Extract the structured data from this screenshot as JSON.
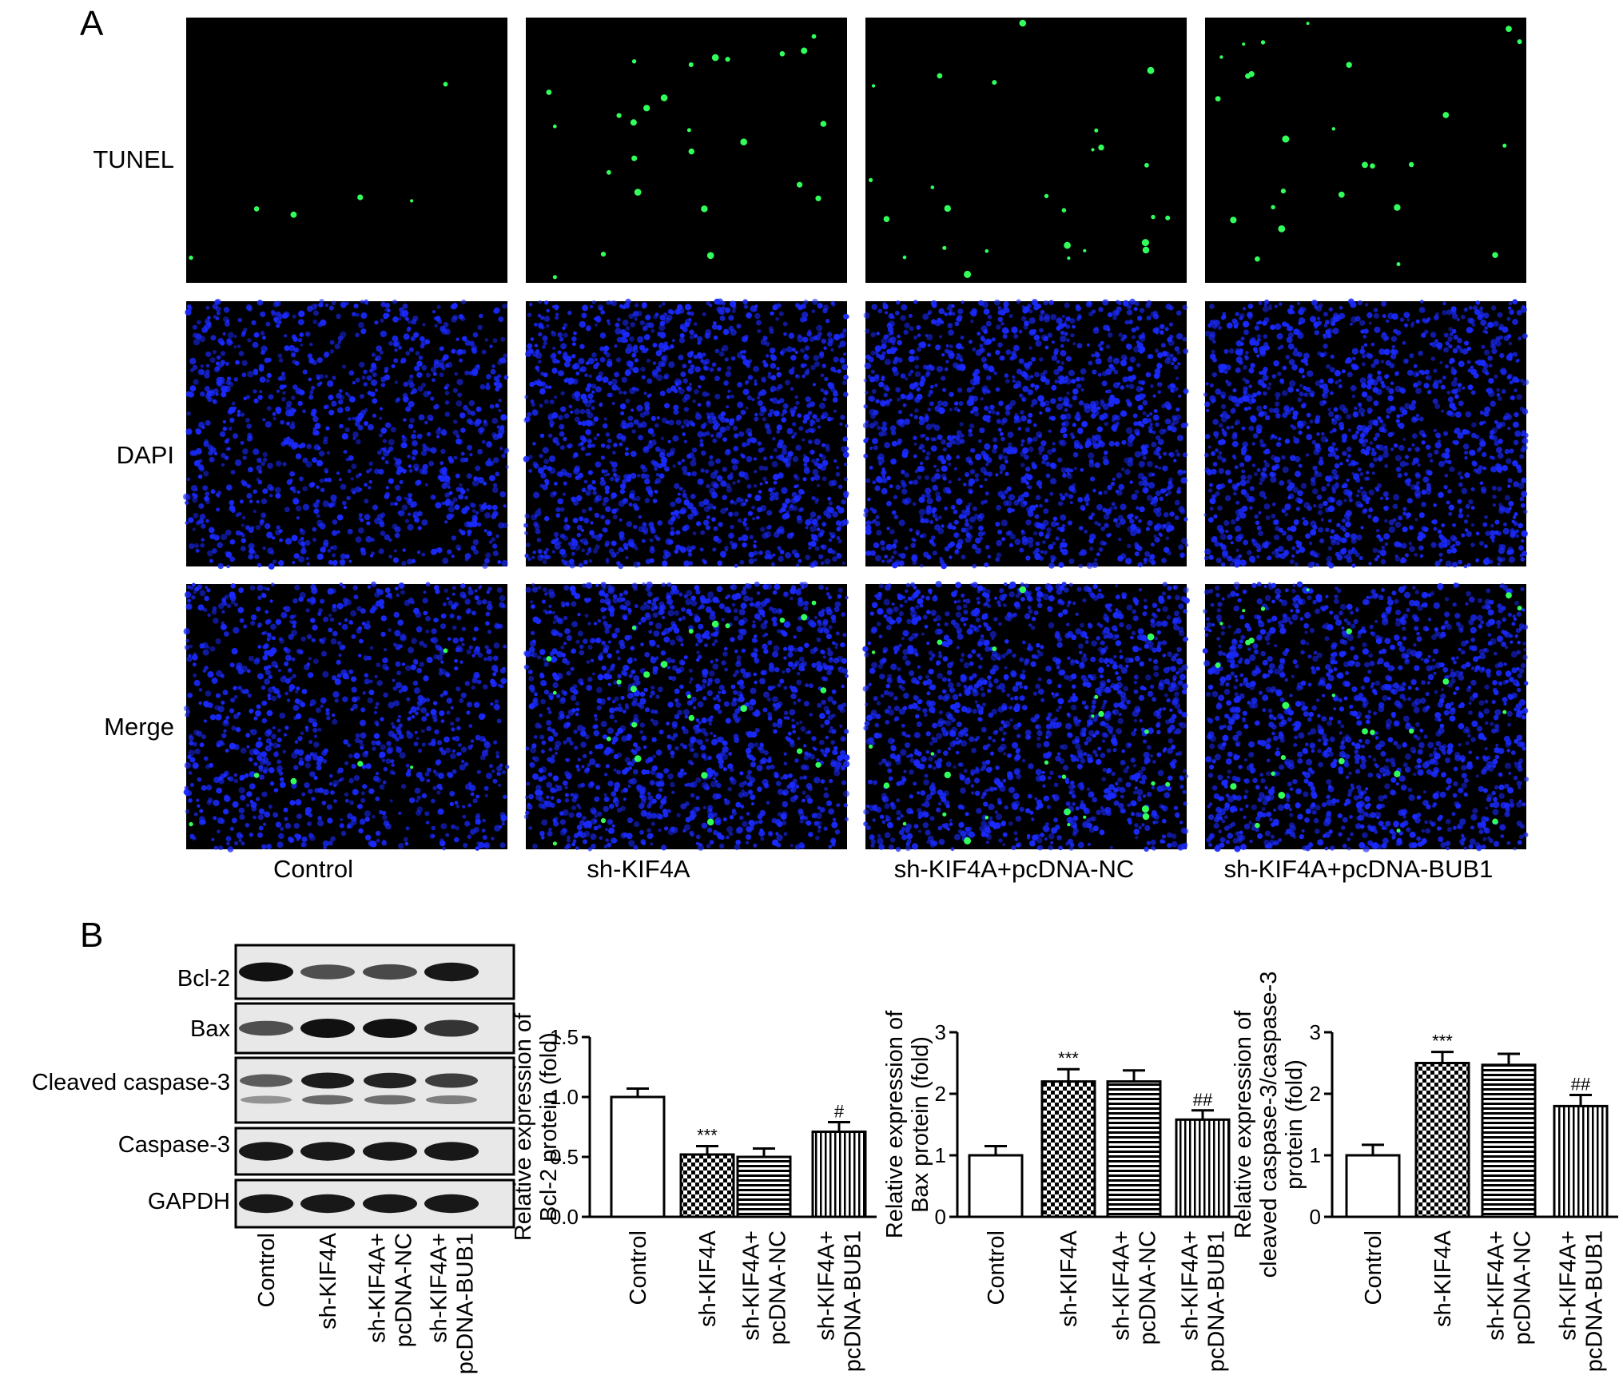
{
  "panel_a": {
    "label": "A",
    "row_labels": [
      "TUNEL",
      "DAPI",
      "Merge"
    ],
    "groups": [
      "Control",
      "sh-KIF4A",
      "sh-KIF4A+pcDNA-NC",
      "sh-KIF4A+pcDNA-BUB1"
    ],
    "colors": {
      "tunel_positive": "#31ff5a",
      "dapi_nuclei": "#1a2aff",
      "background": "#000000"
    }
  },
  "panel_b": {
    "label": "B",
    "blot_rows": [
      "Bcl-2",
      "Bax",
      "Cleaved caspase-3",
      "Caspase-3",
      "GAPDH"
    ],
    "blot_lanes": [
      [
        "Control"
      ],
      [
        "sh-KIF4A"
      ],
      [
        "sh-KIF4A+",
        "pcDNA-NC"
      ],
      [
        "sh-KIF4A+",
        "pcDNA-BUB1"
      ]
    ]
  },
  "chart_data": [
    {
      "type": "bar",
      "categories": [
        [
          "Control"
        ],
        [
          "sh-KIF4A"
        ],
        [
          "sh-KIF4A+",
          "pcDNA-NC"
        ],
        [
          "sh-KIF4A+",
          "pcDNA-BUB1"
        ]
      ],
      "values": [
        1.0,
        0.52,
        0.5,
        0.71
      ],
      "errors": [
        0.07,
        0.07,
        0.07,
        0.08
      ],
      "annotations": [
        "",
        "***",
        "",
        "#"
      ],
      "ylabel": [
        "Relative expression of",
        "Bcl-2 protein (fold)"
      ],
      "ylim": [
        0,
        1.5
      ],
      "yticks": [
        "0.0",
        "0.5",
        "1.0",
        "1.5"
      ],
      "ytick_values": [
        0,
        0.5,
        1.0,
        1.5
      ],
      "patterns": [
        "none",
        "checker",
        "hstripes",
        "vstripes"
      ]
    },
    {
      "type": "bar",
      "categories": [
        [
          "Control"
        ],
        [
          "sh-KIF4A"
        ],
        [
          "sh-KIF4A+",
          "pcDNA-NC"
        ],
        [
          "sh-KIF4A+",
          "pcDNA-BUB1"
        ]
      ],
      "values": [
        1.0,
        2.2,
        2.2,
        1.58
      ],
      "errors": [
        0.15,
        0.2,
        0.18,
        0.15
      ],
      "annotations": [
        "",
        "***",
        "",
        "##"
      ],
      "ylabel": [
        "Relative expression of",
        "Bax protein (fold)"
      ],
      "ylim": [
        0,
        3
      ],
      "yticks": [
        "0",
        "1",
        "2",
        "3"
      ],
      "ytick_values": [
        0,
        1,
        2,
        3
      ],
      "patterns": [
        "none",
        "checker",
        "hstripes",
        "vstripes"
      ]
    },
    {
      "type": "bar",
      "categories": [
        [
          "Control"
        ],
        [
          "sh-KIF4A"
        ],
        [
          "sh-KIF4A+",
          "pcDNA-NC"
        ],
        [
          "sh-KIF4A+",
          "pcDNA-BUB1"
        ]
      ],
      "values": [
        1.0,
        2.5,
        2.47,
        1.8
      ],
      "errors": [
        0.17,
        0.18,
        0.18,
        0.18
      ],
      "annotations": [
        "",
        "***",
        "",
        "##"
      ],
      "ylabel": [
        "Relative expression of",
        "cleaved caspase-3/caspase-3",
        "protein (fold)"
      ],
      "ylim": [
        0,
        3
      ],
      "yticks": [
        "0",
        "1",
        "2",
        "3"
      ],
      "ytick_values": [
        0,
        1,
        2,
        3
      ],
      "patterns": [
        "none",
        "checker",
        "hstripes",
        "vstripes"
      ]
    }
  ]
}
